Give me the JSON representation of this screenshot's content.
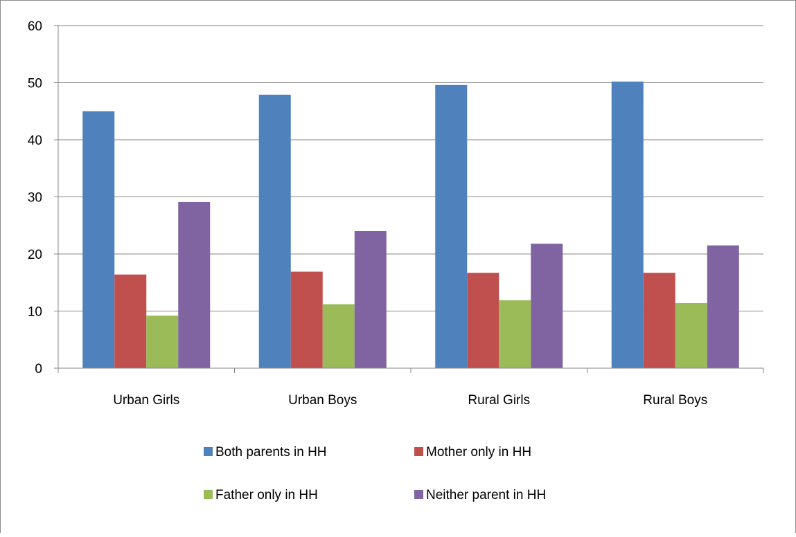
{
  "chart_data": {
    "type": "bar",
    "categories": [
      "Urban Girls",
      "Urban Boys",
      "Rural Girls",
      "Rural Boys"
    ],
    "series": [
      {
        "name": "Both parents in HH",
        "color": "#4F81BD",
        "values": [
          45.0,
          47.9,
          49.6,
          50.2
        ]
      },
      {
        "name": "Mother only in HH",
        "color": "#C0504D",
        "values": [
          16.4,
          16.9,
          16.7,
          16.7
        ]
      },
      {
        "name": "Father only in HH",
        "color": "#9BBB59",
        "values": [
          9.2,
          11.2,
          11.9,
          11.4
        ]
      },
      {
        "name": "Neither parent in HH",
        "color": "#8064A2",
        "values": [
          29.1,
          24.0,
          21.8,
          21.5
        ]
      }
    ],
    "title": "",
    "xlabel": "",
    "ylabel": "",
    "ylim": [
      0,
      60
    ],
    "yticks": [
      0,
      10,
      20,
      30,
      40,
      50,
      60
    ],
    "grid": true,
    "legend_position": "bottom"
  }
}
